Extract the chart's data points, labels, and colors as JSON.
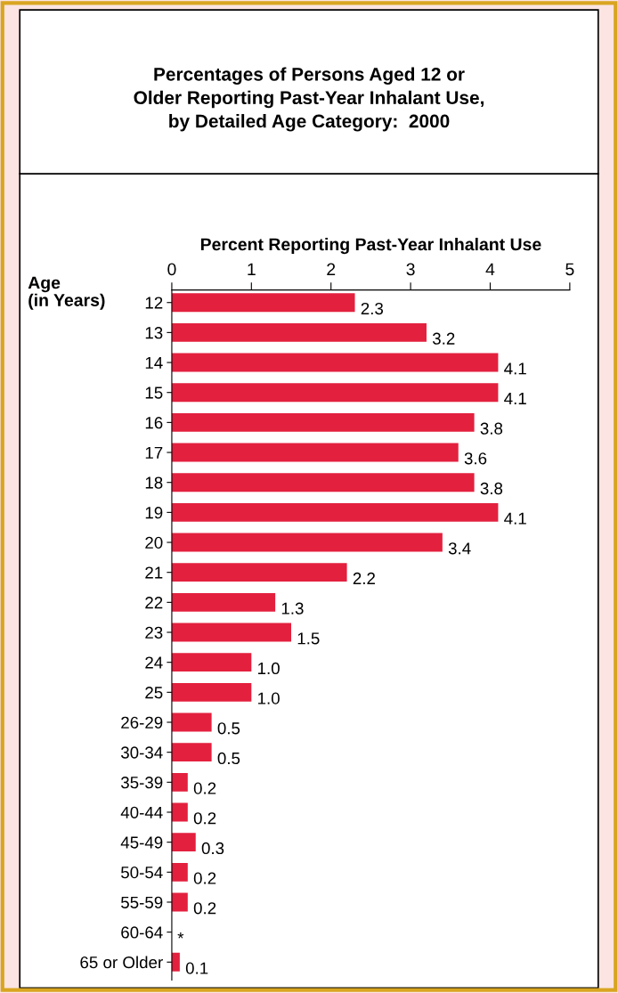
{
  "chart_data": {
    "type": "bar",
    "orientation": "horizontal",
    "title": "Percentages of Persons Aged 12 or\nOlder Reporting Past-Year Inhalant Use,\nby Detailed Age Category:  2000",
    "xlabel": "Percent Reporting Past-Year Inhalant Use",
    "ylabel": "Age\n(in Years)",
    "categories": [
      "12",
      "13",
      "14",
      "15",
      "16",
      "17",
      "18",
      "19",
      "20",
      "21",
      "22",
      "23",
      "24",
      "25",
      "26-29",
      "30-34",
      "35-39",
      "40-44",
      "45-49",
      "50-54",
      "55-59",
      "60-64",
      "65 or Older"
    ],
    "values": [
      2.3,
      3.2,
      4.1,
      4.1,
      3.8,
      3.6,
      3.8,
      4.1,
      3.4,
      2.2,
      1.3,
      1.5,
      1.0,
      1.0,
      0.5,
      0.5,
      0.2,
      0.2,
      0.3,
      0.2,
      0.2,
      null,
      0.1
    ],
    "value_labels": [
      "2.3",
      "3.2",
      "4.1",
      "4.1",
      "3.8",
      "3.6",
      "3.8",
      "4.1",
      "3.4",
      "2.2",
      "1.3",
      "1.5",
      "1.0",
      "1.0",
      "0.5",
      "0.5",
      "0.2",
      "0.2",
      "0.3",
      "0.2",
      "0.2",
      "*",
      "0.1"
    ],
    "color": "#e3203e",
    "xlim": [
      0,
      5
    ],
    "xticks": [
      0,
      1,
      2,
      3,
      4,
      5
    ],
    "grid": false,
    "legend": false
  }
}
